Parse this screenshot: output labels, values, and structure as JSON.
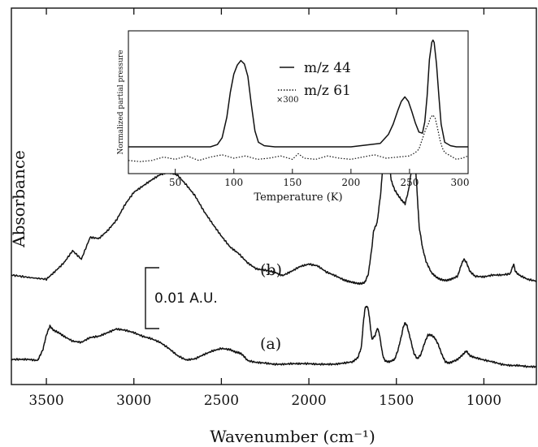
{
  "chart_data": [
    {
      "type": "line",
      "xlabel": "Wavenumber (cm⁻¹)",
      "ylabel": "Absorbance",
      "x_reversed": true,
      "xlim": [
        3700,
        700
      ],
      "x_ticks": [
        3500,
        3000,
        2500,
        2000,
        1500,
        1000
      ],
      "x_tick_labels": [
        "3500",
        "3000",
        "2500",
        "2000",
        "1500",
        "1000"
      ],
      "scale_bar_label": "0.01 A.U.",
      "scale_bar_value": 0.01,
      "series": [
        {
          "name": "(b)",
          "x": [
            3700,
            3600,
            3500,
            3450,
            3400,
            3350,
            3300,
            3250,
            3200,
            3150,
            3100,
            3050,
            3000,
            2950,
            2900,
            2850,
            2800,
            2750,
            2700,
            2650,
            2600,
            2550,
            2500,
            2450,
            2400,
            2350,
            2300,
            2250,
            2200,
            2150,
            2100,
            2050,
            2000,
            1950,
            1900,
            1850,
            1800,
            1780,
            1750,
            1720,
            1700,
            1680,
            1660,
            1640,
            1630,
            1610,
            1590,
            1570,
            1560,
            1550,
            1540,
            1530,
            1510,
            1490,
            1470,
            1450,
            1430,
            1410,
            1400,
            1390,
            1380,
            1370,
            1350,
            1330,
            1300,
            1270,
            1250,
            1220,
            1200,
            1180,
            1150,
            1130,
            1115,
            1100,
            1080,
            1050,
            1000,
            950,
            900,
            850,
            830,
            820,
            800,
            750,
            700
          ],
          "y": [
            0.0012,
            0.0008,
            0.0005,
            0.0018,
            0.0032,
            0.0052,
            0.0038,
            0.0074,
            0.0072,
            0.0085,
            0.0102,
            0.0128,
            0.0148,
            0.0158,
            0.0168,
            0.0177,
            0.0181,
            0.0176,
            0.016,
            0.0142,
            0.0117,
            0.0096,
            0.0076,
            0.0058,
            0.0047,
            0.0032,
            0.0022,
            0.002,
            0.0017,
            0.0011,
            0.0018,
            0.0026,
            0.003,
            0.0027,
            0.0017,
            0.0011,
            0.0004,
            0.0002,
            0.0,
            -0.0002,
            -0.0002,
            0.0,
            0.0014,
            0.0057,
            0.0085,
            0.0098,
            0.0145,
            0.0218,
            0.0235,
            0.0232,
            0.0202,
            0.0168,
            0.0152,
            0.0143,
            0.0135,
            0.0129,
            0.0152,
            0.0192,
            0.0196,
            0.0186,
            0.0141,
            0.0092,
            0.0056,
            0.0034,
            0.0016,
            0.0008,
            0.0005,
            0.0003,
            0.0004,
            0.0006,
            0.001,
            0.0028,
            0.0038,
            0.0033,
            0.0018,
            0.001,
            0.0009,
            0.0012,
            0.0012,
            0.0014,
            0.003,
            0.0018,
            0.0012,
            0.0005,
            0.0002
          ]
        },
        {
          "name": "(a)",
          "x": [
            3700,
            3650,
            3600,
            3550,
            3520,
            3500,
            3480,
            3460,
            3430,
            3400,
            3350,
            3300,
            3250,
            3200,
            3150,
            3100,
            3050,
            3000,
            2950,
            2900,
            2850,
            2800,
            2750,
            2700,
            2650,
            2600,
            2550,
            2500,
            2450,
            2420,
            2400,
            2380,
            2350,
            2300,
            2250,
            2200,
            2150,
            2100,
            2050,
            2000,
            1950,
            1900,
            1850,
            1800,
            1750,
            1720,
            1700,
            1690,
            1680,
            1670,
            1660,
            1650,
            1640,
            1620,
            1610,
            1600,
            1590,
            1580,
            1570,
            1560,
            1540,
            1510,
            1490,
            1470,
            1460,
            1450,
            1440,
            1420,
            1400,
            1380,
            1360,
            1340,
            1320,
            1300,
            1280,
            1260,
            1240,
            1220,
            1200,
            1180,
            1150,
            1120,
            1100,
            1080,
            1050,
            1000,
            950,
            900,
            850,
            800,
            750,
            700
          ],
          "y": [
            0.0012,
            0.0012,
            0.0012,
            0.001,
            0.0028,
            0.0052,
            0.0067,
            0.006,
            0.0056,
            0.005,
            0.0042,
            0.004,
            0.0048,
            0.005,
            0.0056,
            0.0062,
            0.006,
            0.0056,
            0.005,
            0.0046,
            0.004,
            0.003,
            0.0018,
            0.0011,
            0.0013,
            0.002,
            0.0026,
            0.003,
            0.0028,
            0.0024,
            0.0023,
            0.002,
            0.001,
            0.0007,
            0.0006,
            0.0004,
            0.0004,
            0.0005,
            0.0005,
            0.0005,
            0.0004,
            0.0004,
            0.0004,
            0.0006,
            0.0008,
            0.0015,
            0.0032,
            0.0068,
            0.0095,
            0.01,
            0.0094,
            0.007,
            0.0045,
            0.0052,
            0.0063,
            0.0058,
            0.0041,
            0.0022,
            0.0012,
            0.0009,
            0.0008,
            0.0012,
            0.0028,
            0.0052,
            0.0066,
            0.0072,
            0.0068,
            0.0046,
            0.0022,
            0.0013,
            0.002,
            0.0038,
            0.0052,
            0.0052,
            0.0047,
            0.0036,
            0.002,
            0.0008,
            0.0006,
            0.0008,
            0.0012,
            0.002,
            0.0026,
            0.0018,
            0.0015,
            0.0011,
            0.0008,
            0.0004,
            0.0002,
            0.0002,
            0.0,
            0.0
          ]
        }
      ]
    },
    {
      "type": "line",
      "xlabel": "Temperature (K)",
      "ylabel": "Normalized partial pressure",
      "xlim": [
        10,
        300
      ],
      "ylim": [
        0,
        1.1
      ],
      "x_ticks": [
        50,
        100,
        150,
        200,
        250,
        300
      ],
      "x_tick_labels": [
        "50",
        "100",
        "150",
        "200",
        "250",
        "300"
      ],
      "series": [
        {
          "name": "m/z 44",
          "style": "solid",
          "x": [
            10,
            70,
            80,
            86,
            90,
            94,
            97,
            100,
            103,
            106,
            109,
            112,
            115,
            118,
            121,
            126,
            135,
            160,
            200,
            225,
            232,
            236,
            240,
            243,
            246,
            249,
            252,
            255,
            258,
            261,
            263,
            265,
            267,
            269,
            270,
            271,
            273,
            275,
            277,
            280,
            285,
            290,
            300
          ],
          "y": [
            0.1,
            0.1,
            0.1,
            0.12,
            0.18,
            0.36,
            0.58,
            0.74,
            0.82,
            0.86,
            0.83,
            0.72,
            0.47,
            0.24,
            0.14,
            0.11,
            0.1,
            0.1,
            0.1,
            0.13,
            0.21,
            0.3,
            0.42,
            0.5,
            0.54,
            0.5,
            0.41,
            0.31,
            0.23,
            0.22,
            0.32,
            0.55,
            0.87,
            1.02,
            1.04,
            1.02,
            0.83,
            0.55,
            0.3,
            0.14,
            0.11,
            0.1,
            0.1
          ]
        },
        {
          "name": "×300 m/z 61",
          "multiplier": "×300",
          "style": "dotted",
          "x": [
            10,
            20,
            30,
            40,
            50,
            60,
            70,
            80,
            90,
            100,
            110,
            120,
            130,
            140,
            150,
            155,
            160,
            170,
            180,
            190,
            200,
            210,
            220,
            230,
            240,
            250,
            255,
            258,
            260,
            262,
            264,
            266,
            268,
            270,
            272,
            274,
            276,
            278,
            280,
            285,
            290,
            295,
            300
          ],
          "y": [
            -0.02,
            -0.03,
            -0.02,
            0.01,
            -0.01,
            0.02,
            -0.02,
            0.01,
            0.03,
            0.0,
            0.02,
            -0.01,
            0.0,
            0.02,
            -0.01,
            0.04,
            0.0,
            -0.01,
            0.02,
            0.0,
            -0.01,
            0.01,
            0.03,
            0.0,
            0.01,
            0.02,
            0.05,
            0.08,
            0.14,
            0.2,
            0.26,
            0.3,
            0.36,
            0.38,
            0.35,
            0.26,
            0.16,
            0.09,
            0.05,
            0.02,
            -0.01,
            0.0,
            0.02
          ]
        }
      ]
    }
  ]
}
